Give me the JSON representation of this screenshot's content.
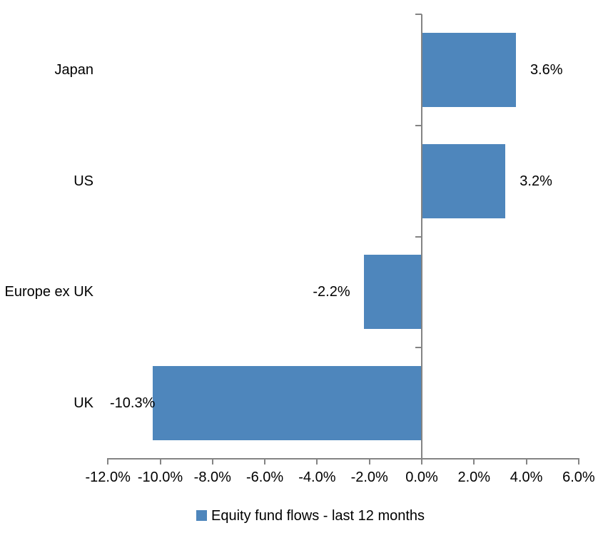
{
  "chart_data": {
    "type": "bar",
    "orientation": "horizontal",
    "title": "",
    "xlabel": "",
    "ylabel": "",
    "categories": [
      "Japan",
      "US",
      "Europe ex UK",
      "UK"
    ],
    "values": [
      3.6,
      3.2,
      -2.2,
      -10.3
    ],
    "value_labels": [
      "3.6%",
      "3.2%",
      "-2.2%",
      "-10.3%"
    ],
    "series_name": "Equity fund flows - last 12 months",
    "xlim": [
      -12,
      6
    ],
    "x_ticks": [
      -12,
      -10,
      -8,
      -6,
      -4,
      -2,
      0,
      2,
      4,
      6
    ],
    "x_tick_labels": [
      "-12.0%",
      "-10.0%",
      "-8.0%",
      "-6.0%",
      "-4.0%",
      "-2.0%",
      "0.0%",
      "2.0%",
      "4.0%",
      "6.0%"
    ],
    "grid": false,
    "legend_position": "bottom",
    "bar_color": "#4E86BC",
    "axis_color": "#848484",
    "text_color": "#000000"
  },
  "legend": {
    "label": "Equity fund flows - last 12 months"
  }
}
